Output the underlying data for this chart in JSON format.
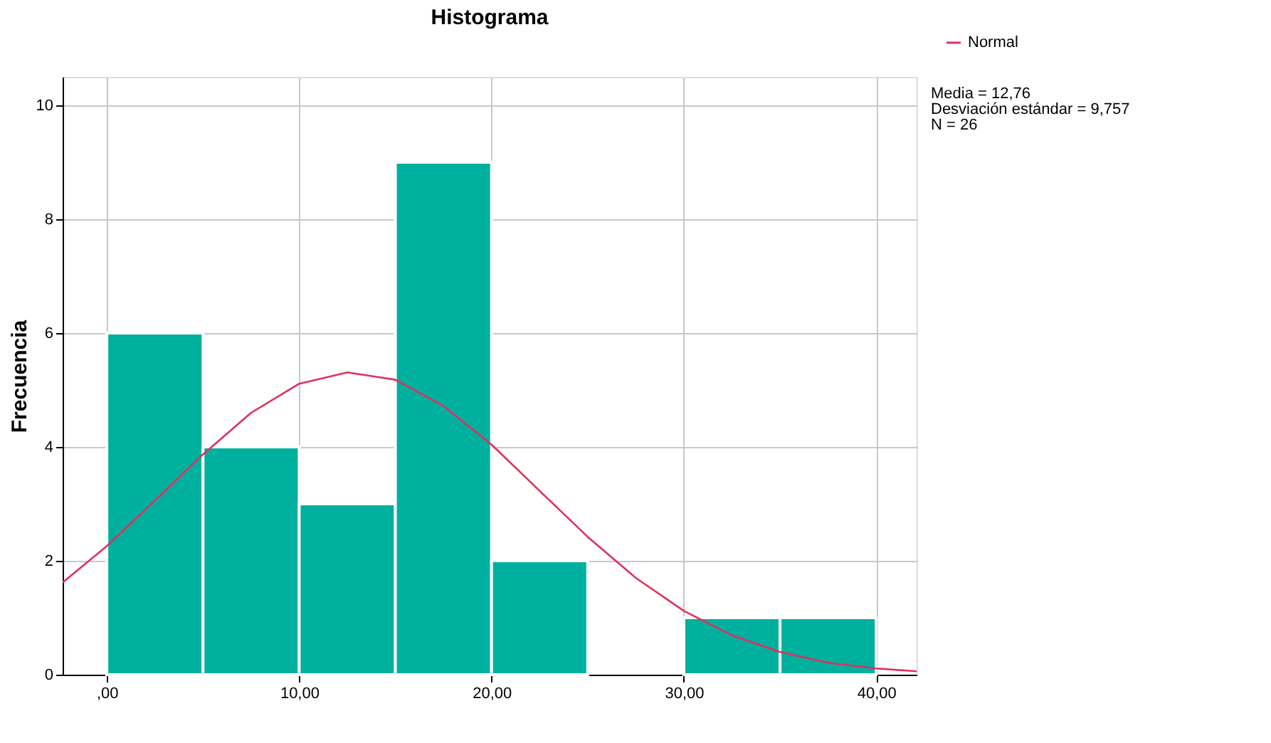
{
  "chart_data": {
    "type": "histogram",
    "title": "Histograma",
    "ylabel": "Frecuencia",
    "bins": [
      0,
      5,
      10,
      15,
      20,
      25,
      30,
      35,
      40
    ],
    "values": [
      6,
      4,
      3,
      9,
      2,
      0,
      1,
      1
    ],
    "color": "#00b09e",
    "series": [
      {
        "name": "Normal",
        "type": "line",
        "color": "#e0305f",
        "x": [
          -2.3,
          0,
          2.5,
          5,
          7.5,
          10,
          12.5,
          15,
          17.5,
          20,
          22.5,
          25,
          27.5,
          30,
          32.5,
          35,
          37.5,
          40,
          42.1
        ],
        "values": [
          1.62,
          2.26,
          3.06,
          3.87,
          4.6,
          5.11,
          5.31,
          5.18,
          4.72,
          4.04,
          3.23,
          2.42,
          1.7,
          1.12,
          0.69,
          0.4,
          0.21,
          0.11,
          0.06
        ]
      }
    ],
    "xlim": [
      -2.3,
      42.1
    ],
    "xticks": [
      {
        "value": 0,
        "label": ",00"
      },
      {
        "value": 10,
        "label": "10,00"
      },
      {
        "value": 20,
        "label": "20,00"
      },
      {
        "value": 30,
        "label": "30,00"
      },
      {
        "value": 40,
        "label": "40,00"
      }
    ],
    "ylim": [
      0,
      10.5
    ],
    "yticks": [
      0,
      2,
      4,
      6,
      8,
      10
    ],
    "annotations": [
      "Media = 12,76",
      "Desviación estándar = 9,757",
      "N = 26"
    ],
    "grid": true,
    "legend": "top right",
    "line_style": "solid",
    "marker": "none"
  }
}
